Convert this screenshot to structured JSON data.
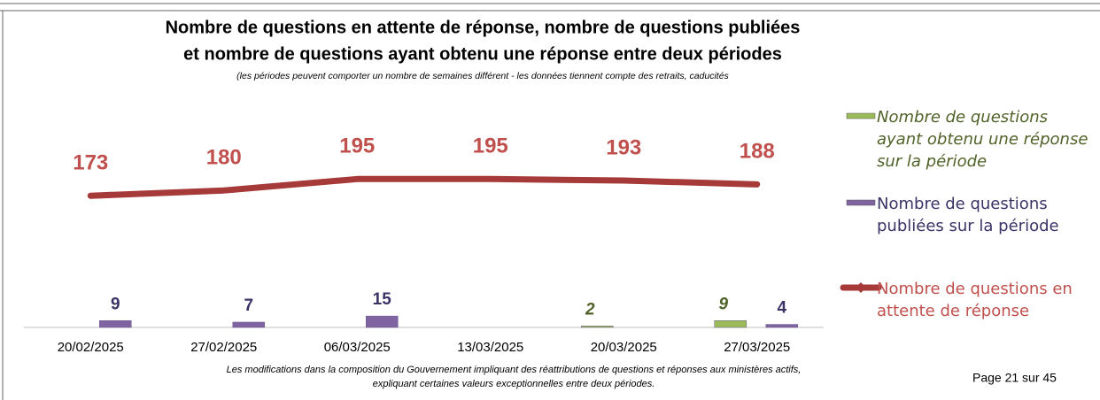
{
  "chart_data": {
    "type": "bar",
    "title": [
      "Nombre de questions en attente de réponse, nombre de questions publiées",
      "et nombre de questions ayant obtenu une réponse entre deux périodes"
    ],
    "subtitle": "(les périodes peuvent comporter un nombre de semaines différent - les données tiennent compte des retraits, caducités",
    "categories": [
      "20/02/2025",
      "27/02/2025",
      "06/03/2025",
      "13/03/2025",
      "20/03/2025",
      "27/03/2025"
    ],
    "series": [
      {
        "name": "Nombre de questions ayant obtenu une réponse sur la période",
        "type": "bar",
        "color": "#9bbb59",
        "values": [
          null,
          null,
          null,
          null,
          2,
          9
        ]
      },
      {
        "name": "Nombre de questions publiées sur la période",
        "type": "bar",
        "color": "#8064a2",
        "values": [
          9,
          7,
          15,
          null,
          null,
          4
        ]
      },
      {
        "name": "Nombre de questions en attente de réponse",
        "type": "line",
        "color": "#a53a38",
        "values": [
          173,
          180,
          195,
          195,
          193,
          188
        ]
      }
    ],
    "ylim": [
      0,
      400
    ],
    "note": [
      "Les modifications dans la composition du Gouvernement impliquant des réattributions de questions et réponses aux ministères actifs,",
      "expliquant certaines valeurs exceptionnelles entre deux périodes."
    ]
  },
  "page_footer": "Page 21 sur 45"
}
